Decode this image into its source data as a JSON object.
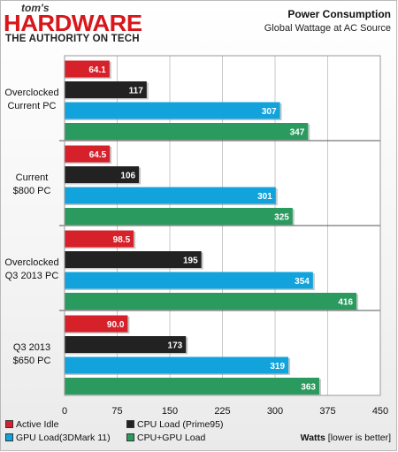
{
  "logo": {
    "line1": "tom's",
    "line2": "HARDWARE",
    "line3": "THE AUTHORITY ON TECH"
  },
  "header": {
    "title": "Power Consumption",
    "subtitle": "Global Wattage at AC Source"
  },
  "footer": {
    "unit_bold": "Watts",
    "unit_note": "[lower is better]"
  },
  "colors": {
    "active_idle": "#d6202a",
    "cpu_load": "#222222",
    "gpu_load": "#12a3dc",
    "cpu_gpu_load": "#2b9a5e"
  },
  "chart_data": {
    "type": "bar",
    "orientation": "horizontal",
    "title": "Power Consumption",
    "subtitle": "Global Wattage at AC Source",
    "xlabel": "Watts [lower is better]",
    "xlim": [
      0,
      450
    ],
    "xticks": [
      0,
      75,
      150,
      225,
      300,
      375,
      450
    ],
    "grid": true,
    "legend_position": "bottom-left",
    "categories": [
      "Overclocked\nCurrent PC",
      "Current\n$800 PC",
      "Overclocked\nQ3 2013 PC",
      "Q3 2013\n$650 PC"
    ],
    "series": [
      {
        "name": "Active Idle",
        "color": "#d6202a",
        "values": [
          64.1,
          64.5,
          98.5,
          90.0
        ],
        "labels": [
          "64.1",
          "64.5",
          "98.5",
          "90.0"
        ]
      },
      {
        "name": "CPU Load (Prime95)",
        "color": "#222222",
        "values": [
          117,
          106,
          195,
          173
        ],
        "labels": [
          "117",
          "106",
          "195",
          "173"
        ]
      },
      {
        "name": "GPU Load(3DMark 11)",
        "color": "#12a3dc",
        "values": [
          307,
          301,
          354,
          319
        ],
        "labels": [
          "307",
          "301",
          "354",
          "319"
        ]
      },
      {
        "name": "CPU+GPU Load",
        "color": "#2b9a5e",
        "values": [
          347,
          325,
          416,
          363
        ],
        "labels": [
          "347",
          "325",
          "416",
          "363"
        ]
      }
    ]
  }
}
